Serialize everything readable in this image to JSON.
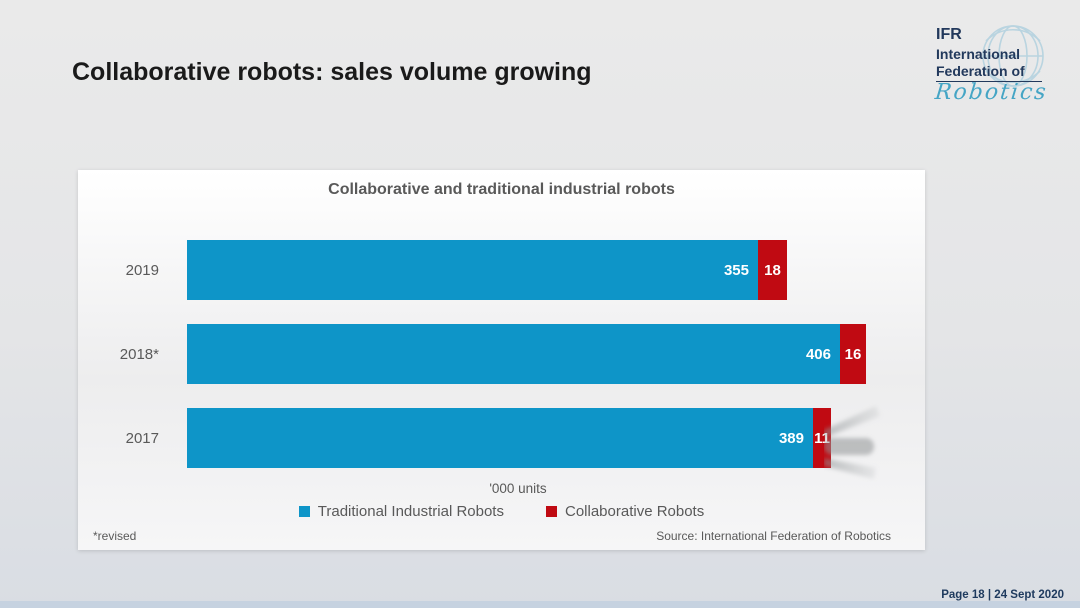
{
  "header": {
    "title": "Collaborative robots: sales volume growing"
  },
  "logo": {
    "abbr": "IFR",
    "line1": "International",
    "line2": "Federation of",
    "script": "Robotics"
  },
  "chart_data": {
    "type": "bar",
    "orientation": "horizontal-stacked",
    "title": "Collaborative and traditional industrial robots",
    "categories": [
      "2019",
      "2018*",
      "2017"
    ],
    "series": [
      {
        "name": "Traditional Industrial Robots",
        "color": "#0e95c8",
        "values": [
          355,
          406,
          389
        ]
      },
      {
        "name": "Collaborative Robots",
        "color": "#c00a12",
        "values": [
          18,
          16,
          11
        ]
      }
    ],
    "units_label": "'000 units",
    "legend_position": "bottom",
    "value_labels": "inside-end",
    "xlim": [
      0,
      440
    ]
  },
  "panel": {
    "footnote": "*revised",
    "source": "Source: International Federation of Robotics"
  },
  "footer": {
    "page_label": "Page 18 | 24 Sept 2020"
  },
  "colors": {
    "traditional_blue": "#0e95c8",
    "collaborative_red": "#c00a12",
    "text_gray": "#595959",
    "navy": "#1e3a5e",
    "logo_teal": "#45a5c5"
  }
}
